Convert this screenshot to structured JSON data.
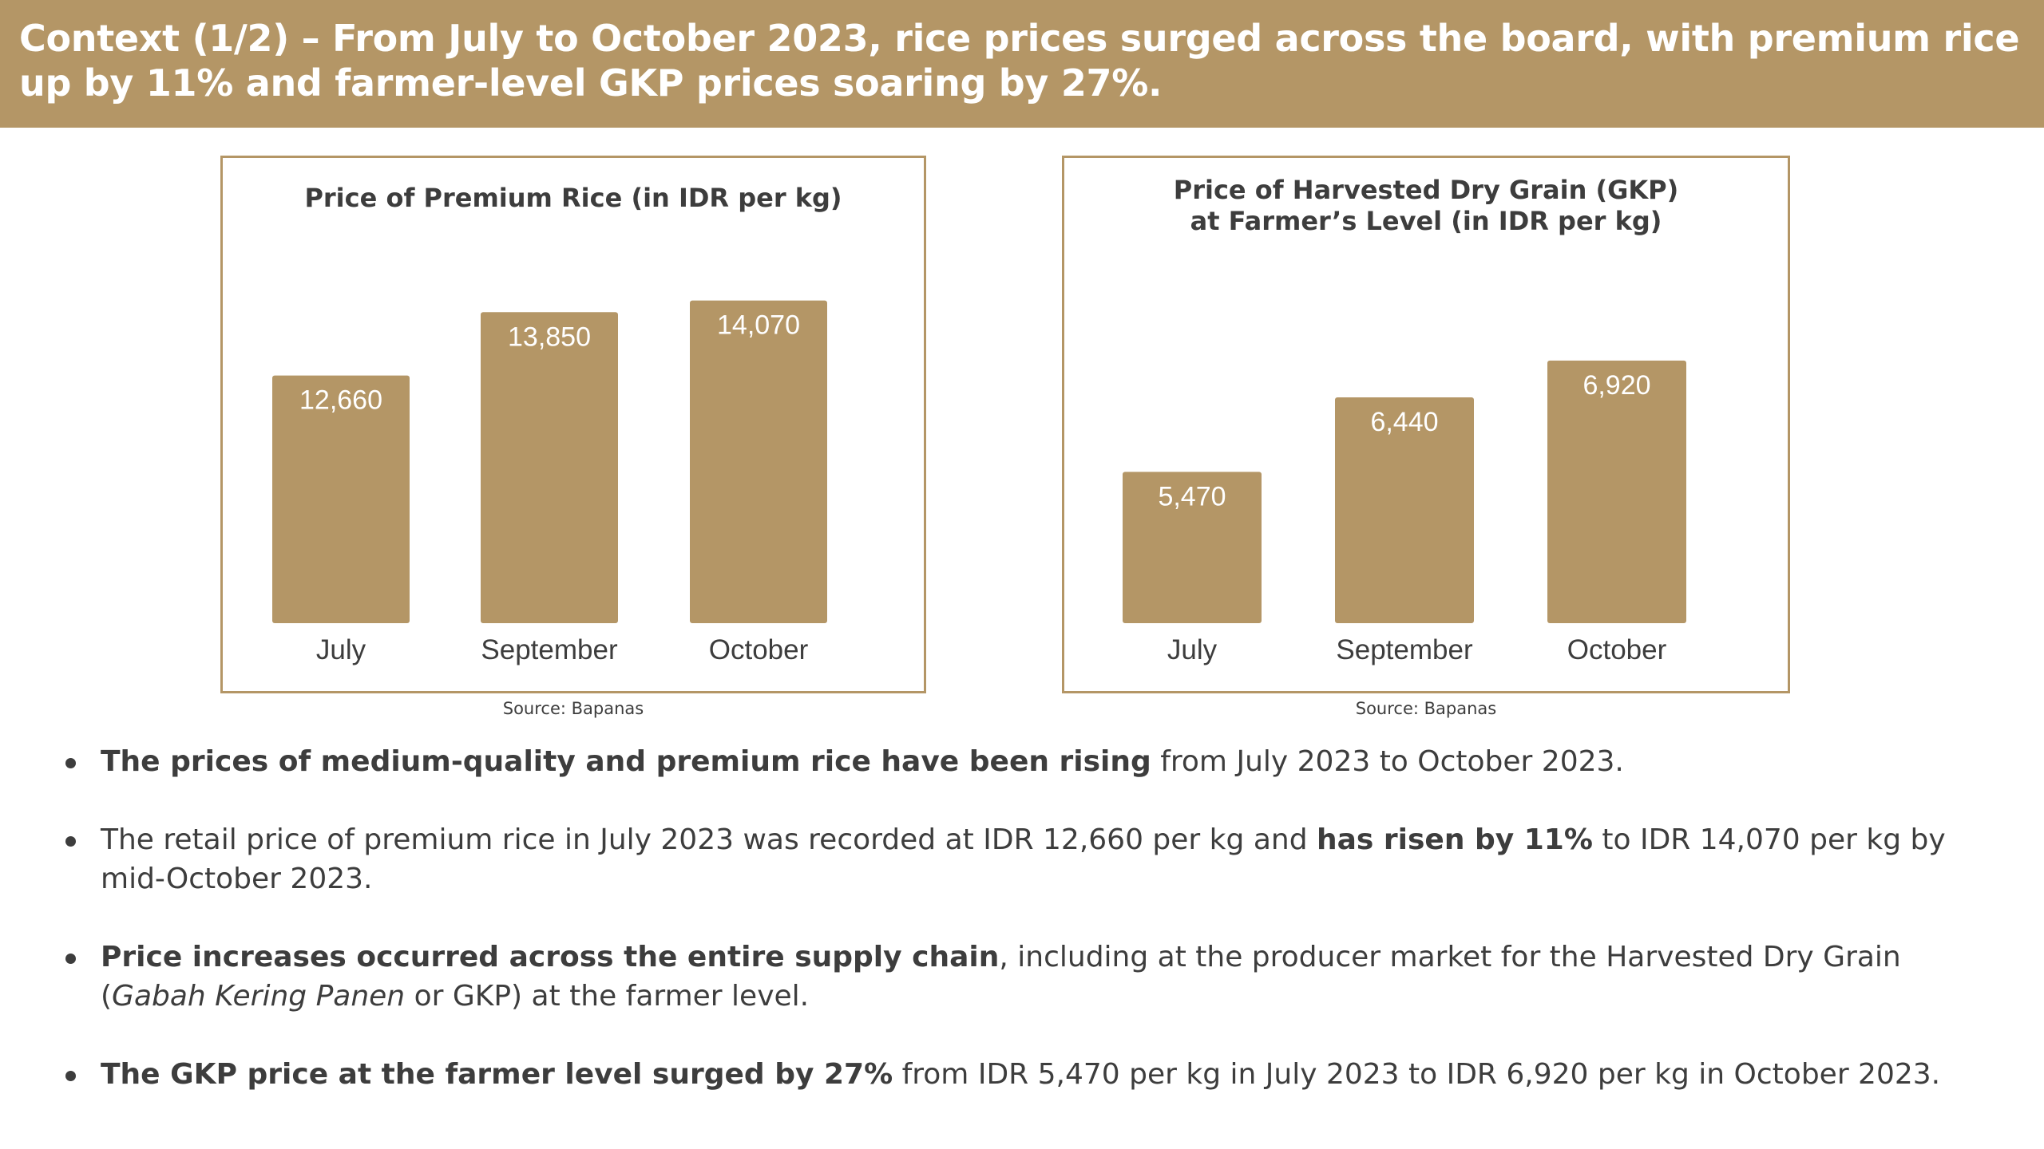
{
  "header": {
    "title": "Context (1/2) – From July to October 2023, rice prices surged across the board, with premium rice up by 11% and farmer-level GKP prices soaring by 27%."
  },
  "colors": {
    "accent": "#b49666",
    "text": "#3d3d3d"
  },
  "chart_data": [
    {
      "type": "bar",
      "title": "Price of Premium Rice (in IDR per kg)",
      "categories": [
        "July",
        "September",
        "October"
      ],
      "values": [
        12660,
        13850,
        14070
      ],
      "value_labels": [
        "12,660",
        "13,850",
        "14,070"
      ],
      "ylim": [
        8000,
        14500
      ],
      "source": "Source: Bapanas"
    },
    {
      "type": "bar",
      "title_lines": [
        "Price of Harvested Dry Grain (GKP)",
        "at Farmer’s Level (in IDR per kg)"
      ],
      "categories": [
        "July",
        "September",
        "October"
      ],
      "values": [
        5470,
        6440,
        6920
      ],
      "value_labels": [
        "5,470",
        "6,440",
        "6,920"
      ],
      "ylim": [
        3500,
        7500
      ],
      "source": "Source: Bapanas"
    }
  ],
  "bullets": [
    {
      "parts": [
        {
          "text": "The prices of medium-quality and premium rice have been rising",
          "style": "bold"
        },
        {
          "text": " from July 2023 to October 2023.",
          "style": "normal"
        }
      ]
    },
    {
      "parts": [
        {
          "text": "The retail price of premium rice in July 2023 was recorded at IDR 12,660 per kg and ",
          "style": "normal"
        },
        {
          "text": "has risen by 11%",
          "style": "bold"
        },
        {
          "text": " to IDR 14,070 per kg by mid-October 2023.",
          "style": "normal"
        }
      ]
    },
    {
      "parts": [
        {
          "text": "Price increases occurred across the entire supply chain",
          "style": "bold"
        },
        {
          "text": ", including at the producer market for the Harvested Dry Grain (",
          "style": "normal"
        },
        {
          "text": "Gabah Kering Panen",
          "style": "italic"
        },
        {
          "text": " or GKP) at the farmer level.",
          "style": "normal"
        }
      ]
    },
    {
      "parts": [
        {
          "text": "The GKP price at the farmer level surged by 27%",
          "style": "bold"
        },
        {
          "text": " from IDR 5,470 per kg in July 2023 to IDR 6,920 per kg in October 2023.",
          "style": "normal"
        }
      ]
    }
  ]
}
